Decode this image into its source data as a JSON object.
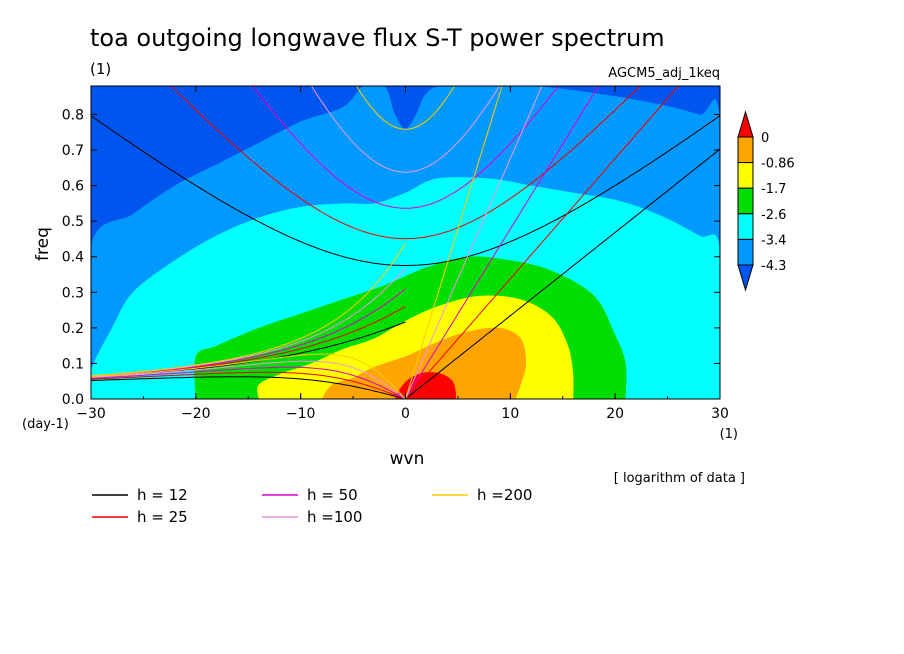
{
  "chart_data": {
    "type": "heatmap",
    "title": "toa outgoing longwave flux S-T power spectrum",
    "subtitle_left": "(1)",
    "subtitle_right": "AGCM5_adj_1keq",
    "xlabel": "wvn",
    "ylabel": "freq",
    "x_unit": "(1)",
    "y_unit": "(day-1)",
    "note": "[ logarithm of data ]",
    "xlim": [
      -30,
      30
    ],
    "ylim": [
      0,
      0.88
    ],
    "x_ticks": [
      -30,
      -20,
      -10,
      0,
      10,
      20,
      30
    ],
    "y_ticks": [
      0.0,
      0.1,
      0.2,
      0.3,
      0.4,
      0.5,
      0.6,
      0.7,
      0.8
    ],
    "colorbar": {
      "levels": [
        "0",
        "-0.86",
        "-1.7",
        "-2.6",
        "-3.4",
        "-4.3"
      ],
      "colors": [
        "#ff0000",
        "#ffa500",
        "#ffff00",
        "#00dd00",
        "#00ffff",
        "#0099ff",
        "#0055ee"
      ]
    },
    "contour_fill": [
      {
        "level": "-4.3",
        "color": "#0099ff",
        "points": [
          [
            -30,
            0
          ],
          [
            -30,
            0.43
          ],
          [
            -26,
            0.52
          ],
          [
            -22,
            0.6
          ],
          [
            -18,
            0.66
          ],
          [
            -14,
            0.72
          ],
          [
            -10,
            0.78
          ],
          [
            -6,
            0.82
          ],
          [
            -4,
            0.88
          ],
          [
            -2,
            0.88
          ],
          [
            -1,
            0.8
          ],
          [
            0,
            0.76
          ],
          [
            1,
            0.8
          ],
          [
            2,
            0.86
          ],
          [
            4,
            0.88
          ],
          [
            12,
            0.88
          ],
          [
            18,
            0.86
          ],
          [
            24,
            0.83
          ],
          [
            28,
            0.8
          ],
          [
            30,
            0.78
          ],
          [
            30,
            0
          ]
        ]
      },
      {
        "level": "-3.4",
        "color": "#00ffff",
        "points": [
          [
            -30,
            0
          ],
          [
            -30,
            0.08
          ],
          [
            -28,
            0.2
          ],
          [
            -26,
            0.3
          ],
          [
            -22,
            0.39
          ],
          [
            -18,
            0.46
          ],
          [
            -14,
            0.51
          ],
          [
            -10,
            0.54
          ],
          [
            -6,
            0.55
          ],
          [
            -3,
            0.55
          ],
          [
            0,
            0.58
          ],
          [
            3,
            0.62
          ],
          [
            8,
            0.62
          ],
          [
            12,
            0.6
          ],
          [
            16,
            0.58
          ],
          [
            20,
            0.56
          ],
          [
            24,
            0.52
          ],
          [
            28,
            0.46
          ],
          [
            30,
            0.42
          ],
          [
            30,
            0
          ]
        ]
      },
      {
        "level": "-2.6",
        "color": "#00dd00",
        "points": [
          [
            -20,
            0
          ],
          [
            -20,
            0.12
          ],
          [
            -18,
            0.15
          ],
          [
            -14,
            0.2
          ],
          [
            -10,
            0.24
          ],
          [
            -6,
            0.28
          ],
          [
            -2,
            0.32
          ],
          [
            2,
            0.37
          ],
          [
            6,
            0.4
          ],
          [
            10,
            0.39
          ],
          [
            14,
            0.36
          ],
          [
            18,
            0.29
          ],
          [
            20,
            0.18
          ],
          [
            21,
            0.1
          ],
          [
            21,
            0
          ]
        ]
      },
      {
        "level": "-1.7",
        "color": "#ffff00",
        "points": [
          [
            -14,
            0
          ],
          [
            -14,
            0.04
          ],
          [
            -12,
            0.07
          ],
          [
            -9,
            0.1
          ],
          [
            -6,
            0.14
          ],
          [
            -3,
            0.17
          ],
          [
            0,
            0.22
          ],
          [
            3,
            0.26
          ],
          [
            7,
            0.29
          ],
          [
            11,
            0.28
          ],
          [
            14,
            0.23
          ],
          [
            15.5,
            0.15
          ],
          [
            16,
            0.07
          ],
          [
            16,
            0
          ]
        ]
      },
      {
        "level": "-0.86",
        "color": "#ffa500",
        "points": [
          [
            -8,
            0
          ],
          [
            -7,
            0.04
          ],
          [
            -5,
            0.06
          ],
          [
            -3,
            0.09
          ],
          [
            0,
            0.12
          ],
          [
            3,
            0.16
          ],
          [
            6,
            0.19
          ],
          [
            9,
            0.2
          ],
          [
            11,
            0.17
          ],
          [
            11.5,
            0.1
          ],
          [
            11,
            0.04
          ],
          [
            10.5,
            0
          ]
        ]
      },
      {
        "level": "0",
        "color": "#ff0000",
        "points": [
          [
            -1,
            0
          ],
          [
            -0.5,
            0.03
          ],
          [
            0.5,
            0.06
          ],
          [
            2,
            0.075
          ],
          [
            3.5,
            0.07
          ],
          [
            4.5,
            0.05
          ],
          [
            4.8,
            0.02
          ],
          [
            4.8,
            0
          ]
        ]
      }
    ],
    "dispersion_curves": [
      {
        "name": "h = 12",
        "h": 12,
        "color": "#000000"
      },
      {
        "name": "h = 25",
        "h": 25,
        "color": "#ee0000"
      },
      {
        "name": "h = 50",
        "h": 50,
        "color": "#dd00cc"
      },
      {
        "name": "h =100",
        "h": 100,
        "color": "#ee99dd"
      },
      {
        "name": "h =200",
        "h": 200,
        "color": "#ffcc00"
      }
    ]
  }
}
